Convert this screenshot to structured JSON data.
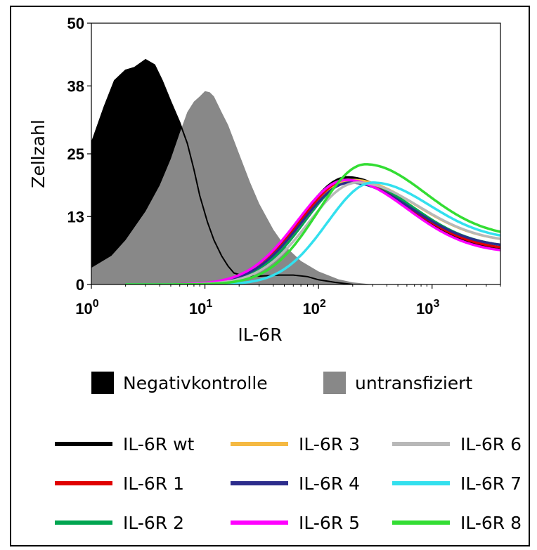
{
  "chart_data": {
    "type": "line",
    "xlabel": "IL-6R",
    "ylabel": "Zellzahl",
    "x_scale": "log",
    "xlim": [
      1,
      4000
    ],
    "ylim": [
      0,
      50
    ],
    "x_ticks": [
      {
        "value": 1,
        "base": "10",
        "exp": "0"
      },
      {
        "value": 10,
        "base": "10",
        "exp": "1"
      },
      {
        "value": 100,
        "base": "10",
        "exp": "2"
      },
      {
        "value": 1000,
        "base": "10",
        "exp": "3"
      }
    ],
    "y_ticks": [
      0,
      13,
      25,
      38,
      50
    ],
    "grid": false,
    "filled_series": [
      {
        "name": "Negativkontrolle",
        "color": "#000000",
        "points": [
          [
            1,
            27
          ],
          [
            1.3,
            34
          ],
          [
            1.6,
            39
          ],
          [
            2,
            41
          ],
          [
            2.4,
            41.5
          ],
          [
            3,
            43
          ],
          [
            3.6,
            42
          ],
          [
            4.2,
            39
          ],
          [
            5,
            35
          ],
          [
            6,
            31
          ],
          [
            7,
            27
          ],
          [
            8,
            22
          ],
          [
            9,
            17
          ],
          [
            10.5,
            12
          ],
          [
            12,
            8.5
          ],
          [
            14,
            5.5
          ],
          [
            16,
            3.5
          ],
          [
            18,
            2.2
          ],
          [
            22,
            1.6
          ],
          [
            30,
            1.6
          ],
          [
            45,
            1.8
          ],
          [
            60,
            1.8
          ],
          [
            80,
            1.5
          ],
          [
            100,
            0.9
          ],
          [
            140,
            0.4
          ],
          [
            200,
            0
          ]
        ]
      },
      {
        "name": "untransfiziert",
        "color": "#888888",
        "points": [
          [
            1,
            3.2
          ],
          [
            1.5,
            5.5
          ],
          [
            2,
            8.5
          ],
          [
            3,
            14
          ],
          [
            4,
            19
          ],
          [
            5,
            24
          ],
          [
            6,
            29
          ],
          [
            7,
            33
          ],
          [
            8,
            35
          ],
          [
            9,
            36
          ],
          [
            10,
            37
          ],
          [
            11,
            36.8
          ],
          [
            12,
            36
          ],
          [
            14,
            33
          ],
          [
            16,
            30.5
          ],
          [
            20,
            25
          ],
          [
            25,
            19.5
          ],
          [
            30,
            15.5
          ],
          [
            40,
            10.5
          ],
          [
            50,
            7.5
          ],
          [
            70,
            4.5
          ],
          [
            100,
            2.5
          ],
          [
            150,
            1
          ],
          [
            200,
            0.4
          ],
          [
            300,
            0
          ]
        ]
      }
    ],
    "series": [
      {
        "name": "IL-6R wt",
        "color": "#000000",
        "peak_x": 180,
        "peak_y": 20.5,
        "sigma": 0.42,
        "tail": 6.5
      },
      {
        "name": "IL-6R 1",
        "color": "#e00000",
        "peak_x": 185,
        "peak_y": 20,
        "sigma": 0.43,
        "tail": 6.5
      },
      {
        "name": "IL-6R 2",
        "color": "#00a550",
        "peak_x": 200,
        "peak_y": 20,
        "sigma": 0.42,
        "tail": 7
      },
      {
        "name": "IL-6R 3",
        "color": "#f5b942",
        "peak_x": 200,
        "peak_y": 20,
        "sigma": 0.44,
        "tail": 8
      },
      {
        "name": "IL-6R 4",
        "color": "#2c2c8c",
        "peak_x": 190,
        "peak_y": 19.5,
        "sigma": 0.43,
        "tail": 7
      },
      {
        "name": "IL-6R 5",
        "color": "#ff00ff",
        "peak_x": 175,
        "peak_y": 20,
        "sigma": 0.43,
        "tail": 6
      },
      {
        "name": "IL-6R 6",
        "color": "#b8b8b8",
        "peak_x": 220,
        "peak_y": 19.5,
        "sigma": 0.43,
        "tail": 8
      },
      {
        "name": "IL-6R 7",
        "color": "#33e0ee",
        "peak_x": 300,
        "peak_y": 19.5,
        "sigma": 0.4,
        "tail": 8.5
      },
      {
        "name": "IL-6R 8",
        "color": "#33dd33",
        "peak_x": 260,
        "peak_y": 23,
        "sigma": 0.42,
        "tail": 9
      }
    ]
  }
}
